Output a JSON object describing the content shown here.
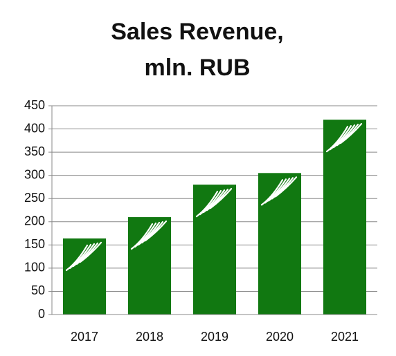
{
  "chart_data": {
    "type": "bar",
    "title": [
      "Sales Revenue,",
      "mln. RUB"
    ],
    "categories": [
      "2017",
      "2018",
      "2019",
      "2020",
      "2021"
    ],
    "values": [
      164,
      210,
      280,
      305,
      420
    ],
    "color": "#117811",
    "ylim": [
      0,
      450
    ],
    "yticks": [
      0,
      50,
      100,
      150,
      200,
      250,
      300,
      350,
      400,
      450
    ],
    "grid": true
  }
}
